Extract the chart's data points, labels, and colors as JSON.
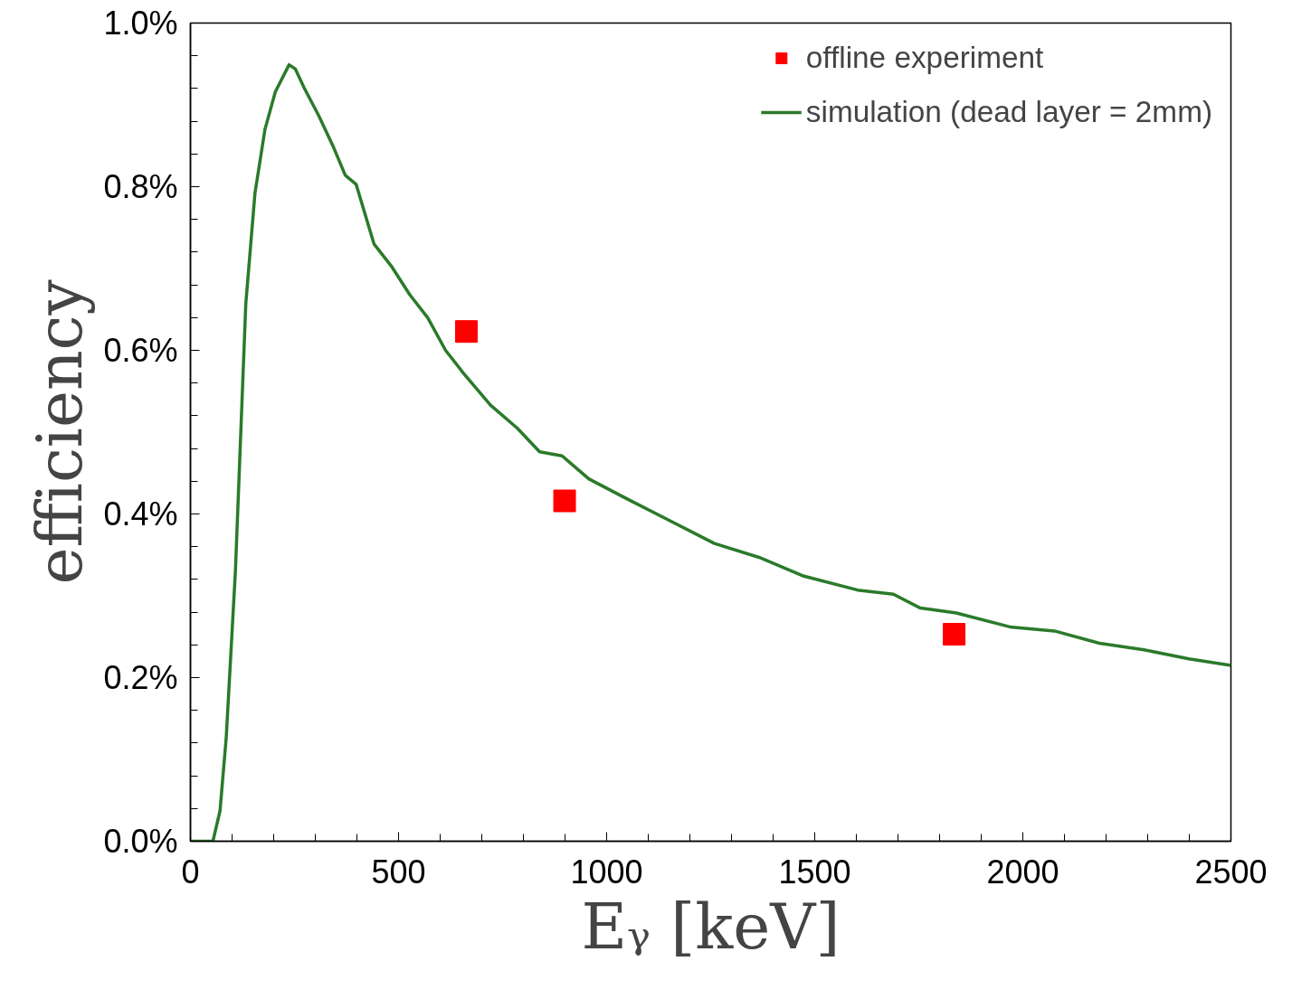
{
  "chart_data": {
    "type": "line",
    "xlabel": "Eᵧ [keV]",
    "ylabel": "efficiency",
    "xlim": [
      0,
      2500
    ],
    "xticks": [
      0,
      500,
      1000,
      1500,
      2000,
      2500
    ],
    "ylim": [
      0,
      1.0
    ],
    "yticks": [
      {
        "value": 0,
        "label": "0.0%"
      },
      {
        "value": 0.2,
        "label": "0.2%"
      },
      {
        "value": 0.4,
        "label": "0.4%"
      },
      {
        "value": 0.6,
        "label": "0.6%"
      },
      {
        "value": 0.8,
        "label": "0.8%"
      },
      {
        "value": 1.0,
        "label": "1.0%"
      }
    ],
    "grid": false,
    "legend": "top right",
    "series": [
      {
        "name": "offline experiment",
        "type": "scatter",
        "marker": "square",
        "color": "#ff0000",
        "x": [
          663,
          899,
          1835
        ],
        "values": [
          0.623,
          0.416,
          0.253
        ]
      },
      {
        "name": "simulation (dead layer = 2mm)",
        "line_style": "solid",
        "color": "#2a7a2a",
        "x": [
          0,
          54,
          71,
          86,
          108,
          133,
          155,
          179,
          204,
          237,
          252,
          273,
          308,
          344,
          372,
          398,
          441,
          484,
          527,
          570,
          613,
          656,
          721,
          785,
          839,
          893,
          957,
          1043,
          1151,
          1259,
          1366,
          1474,
          1603,
          1689,
          1754,
          1840,
          1969,
          2076,
          2184,
          2291,
          2399,
          2500
        ],
        "values": [
          0,
          0,
          0.037,
          0.127,
          0.33,
          0.657,
          0.792,
          0.87,
          0.916,
          0.949,
          0.944,
          0.921,
          0.887,
          0.848,
          0.814,
          0.803,
          0.73,
          0.702,
          0.668,
          0.64,
          0.6,
          0.572,
          0.533,
          0.505,
          0.476,
          0.471,
          0.443,
          0.42,
          0.392,
          0.364,
          0.347,
          0.324,
          0.307,
          0.302,
          0.285,
          0.279,
          0.262,
          0.257,
          0.242,
          0.234,
          0.223,
          0.215
        ]
      }
    ]
  }
}
